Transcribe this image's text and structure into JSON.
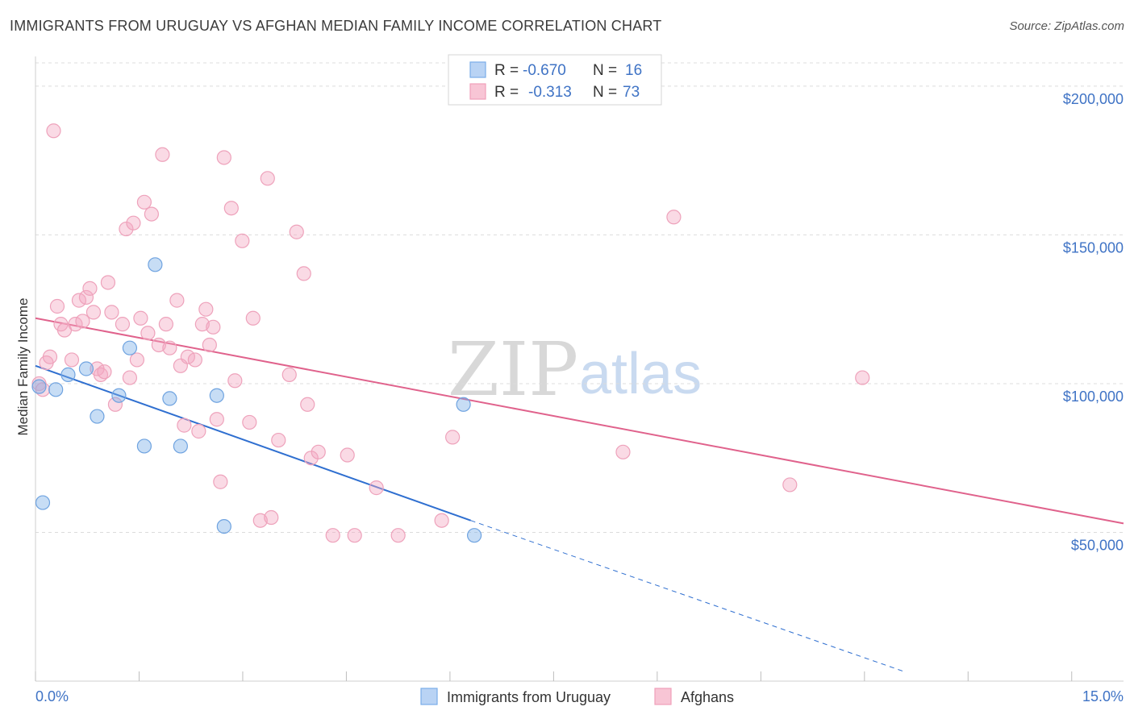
{
  "header": {
    "title": "IMMIGRANTS FROM URUGUAY VS AFGHAN MEDIAN FAMILY INCOME CORRELATION CHART",
    "source": "Source: ZipAtlas.com"
  },
  "watermark": {
    "zip": "ZIP",
    "atlas": "atlas"
  },
  "legend_stats": [
    {
      "r_label": "R =",
      "r_value": "-0.670",
      "n_label": "N =",
      "n_value": "16"
    },
    {
      "r_label": "R =",
      "r_value": "-0.313",
      "n_label": "N =",
      "n_value": "73"
    }
  ],
  "chart_data": {
    "type": "scatter",
    "title": "IMMIGRANTS FROM URUGUAY VS AFGHAN MEDIAN FAMILY INCOME CORRELATION CHART",
    "xlabel": "",
    "ylabel": "Median Family Income",
    "xlim": [
      0,
      15
    ],
    "ylim": [
      0,
      210000
    ],
    "x_tick_labels": [
      "0.0%",
      "15.0%"
    ],
    "y_ticks": [
      50000,
      100000,
      150000,
      200000
    ],
    "y_tick_labels": [
      "$50,000",
      "$100,000",
      "$150,000",
      "$200,000"
    ],
    "grid": "horizontal dashed",
    "legend_position": "top-center and bottom",
    "series": [
      {
        "name": "Immigrants from Uruguay",
        "color": "#7aaee8",
        "line_color": "#2f6fd0",
        "x": [
          0.05,
          0.28,
          0.45,
          0.7,
          0.85,
          1.15,
          1.3,
          1.5,
          1.65,
          1.85,
          2.0,
          2.5,
          2.6,
          5.9,
          6.05,
          0.1
        ],
        "y": [
          99000,
          98000,
          103000,
          105000,
          89000,
          96000,
          112000,
          79000,
          140000,
          95000,
          79000,
          96000,
          52000,
          93000,
          49000,
          60000
        ],
        "trend": {
          "x": [
            0,
            6.0
          ],
          "y": [
            106000,
            54000
          ],
          "extended_to": [
            12.0,
            3000
          ]
        }
      },
      {
        "name": "Afghans",
        "color": "#f4a8c0",
        "line_color": "#e0628c",
        "x": [
          0.05,
          0.15,
          0.2,
          0.3,
          0.35,
          0.4,
          0.5,
          0.55,
          0.6,
          0.7,
          0.75,
          0.8,
          0.85,
          0.9,
          0.95,
          1.0,
          1.05,
          1.1,
          1.2,
          1.25,
          1.35,
          1.4,
          1.45,
          1.5,
          1.55,
          1.6,
          1.7,
          1.75,
          1.8,
          1.85,
          1.95,
          2.0,
          2.05,
          2.1,
          2.2,
          2.25,
          2.3,
          2.35,
          2.4,
          2.45,
          2.5,
          2.55,
          2.6,
          2.7,
          2.75,
          2.85,
          2.95,
          3.0,
          3.1,
          3.2,
          3.25,
          3.35,
          3.5,
          3.6,
          3.7,
          3.75,
          3.8,
          3.9,
          4.1,
          4.3,
          4.4,
          4.7,
          5.0,
          5.6,
          5.75,
          8.1,
          8.8,
          10.4,
          11.4,
          0.1,
          0.25,
          0.65,
          1.3
        ],
        "y": [
          100000,
          107000,
          109000,
          126000,
          120000,
          118000,
          108000,
          120000,
          128000,
          129000,
          132000,
          124000,
          105000,
          103000,
          104000,
          134000,
          124000,
          93000,
          120000,
          152000,
          154000,
          108000,
          122000,
          161000,
          117000,
          157000,
          113000,
          177000,
          120000,
          112000,
          128000,
          106000,
          86000,
          109000,
          108000,
          84000,
          120000,
          125000,
          113000,
          119000,
          88000,
          67000,
          176000,
          159000,
          101000,
          148000,
          87000,
          122000,
          54000,
          169000,
          55000,
          81000,
          103000,
          151000,
          137000,
          93000,
          75000,
          77000,
          49000,
          76000,
          49000,
          65000,
          49000,
          54000,
          82000,
          77000,
          156000,
          66000,
          102000,
          98000,
          185000,
          121000,
          102000
        ],
        "trend": {
          "x": [
            0,
            15
          ],
          "y": [
            122000,
            53000
          ]
        }
      }
    ]
  }
}
